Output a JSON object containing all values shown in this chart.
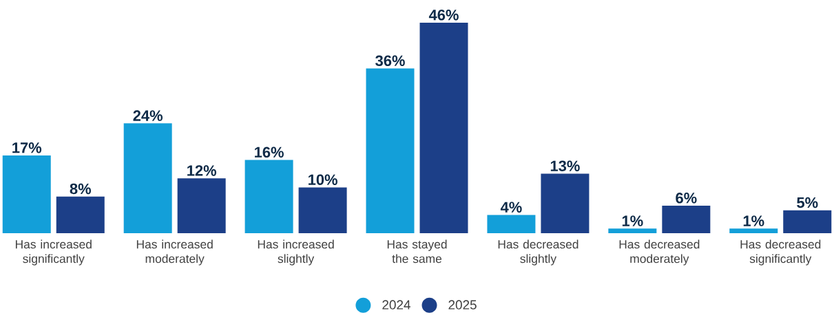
{
  "chart_data": {
    "type": "bar",
    "categories": [
      "Has increased significantly",
      "Has increased moderately",
      "Has increased slightly",
      "Has stayed the same",
      "Has decreased slightly",
      "Has decreased moderately",
      "Has decreased significantly"
    ],
    "series": [
      {
        "name": "2024",
        "color": "#139fd9",
        "values": [
          17,
          24,
          16,
          36,
          4,
          1,
          1
        ],
        "value_labels": [
          "17%",
          "24%",
          "16%",
          "36%",
          "4%",
          "1%",
          "1%"
        ]
      },
      {
        "name": "2025",
        "color": "#1c3f88",
        "values": [
          8,
          12,
          10,
          46,
          13,
          6,
          5
        ],
        "value_labels": [
          "8%",
          "12%",
          "10%",
          "46%",
          "13%",
          "6%",
          "5%"
        ]
      }
    ],
    "legend": "bottom",
    "tick_labels": "x"
  }
}
